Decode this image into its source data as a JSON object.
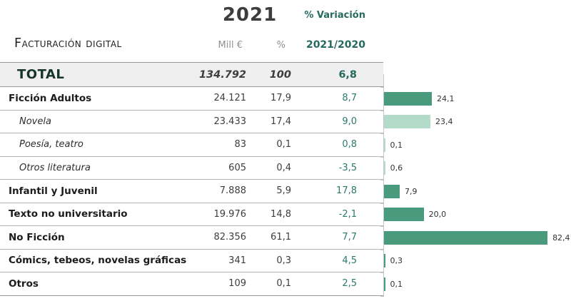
{
  "header": {
    "year": "2021",
    "variation_label": "% Variación",
    "table_title": "Facturación digital",
    "col_mill": "Mill €",
    "col_pct": "%",
    "col_var": "2021/2020"
  },
  "table": {
    "total": {
      "label": "TOTAL",
      "mill": "134.792",
      "pct": "100",
      "var": "6,8"
    },
    "rows": [
      {
        "label": "Ficción Adultos",
        "mill": "24.121",
        "pct": "17,9",
        "var": "8,7",
        "style": "main",
        "bar": 24.1,
        "bar_label": "24,1",
        "bar_color": "dark"
      },
      {
        "label": "Novela",
        "mill": "23.433",
        "pct": "17,4",
        "var": "9,0",
        "style": "sub",
        "bar": 23.4,
        "bar_label": "23,4",
        "bar_color": "light"
      },
      {
        "label": "Poesía, teatro",
        "mill": "83",
        "pct": "0,1",
        "var": "0,8",
        "style": "sub",
        "bar": 0.1,
        "bar_label": "0,1",
        "bar_color": "light"
      },
      {
        "label": "Otros literatura",
        "mill": "605",
        "pct": "0,4",
        "var": "-3,5",
        "style": "sub",
        "bar": 0.6,
        "bar_label": "0,6",
        "bar_color": "light"
      },
      {
        "label": "Infantil y Juvenil",
        "mill": "7.888",
        "pct": "5,9",
        "var": "17,8",
        "style": "main",
        "bar": 7.9,
        "bar_label": "7,9",
        "bar_color": "dark"
      },
      {
        "label": "Texto no universitario",
        "mill": "19.976",
        "pct": "14,8",
        "var": "-2,1",
        "style": "main",
        "bar": 20.0,
        "bar_label": "20,0",
        "bar_color": "dark"
      },
      {
        "label": "No Ficción",
        "mill": "82.356",
        "pct": "61,1",
        "var": "7,7",
        "style": "main",
        "bar": 82.4,
        "bar_label": "82,4",
        "bar_color": "dark"
      },
      {
        "label": "Cómics, tebeos, novelas gráficas",
        "mill": "341",
        "pct": "0,3",
        "var": "4,5",
        "style": "main",
        "bar": 0.3,
        "bar_label": "0,3",
        "bar_color": "dark"
      },
      {
        "label": "Otros",
        "mill": "109",
        "pct": "0,1",
        "var": "2,5",
        "style": "main",
        "bar": 0.1,
        "bar_label": "0,1",
        "bar_color": "dark"
      }
    ]
  },
  "chart_data": {
    "type": "bar",
    "orientation": "horizontal",
    "title": "Facturación digital 2021",
    "categories": [
      "Ficción Adultos",
      "Novela",
      "Poesía, teatro",
      "Otros literatura",
      "Infantil y Juvenil",
      "Texto no universitario",
      "No Ficción",
      "Cómics, tebeos, novelas gráficas",
      "Otros"
    ],
    "series": [
      {
        "name": "Mill €",
        "values": [
          24121,
          23433,
          83,
          605,
          7888,
          19976,
          82356,
          341,
          109
        ]
      },
      {
        "name": "%",
        "values": [
          17.9,
          17.4,
          0.1,
          0.4,
          5.9,
          14.8,
          61.1,
          0.3,
          0.1
        ]
      },
      {
        "name": "% Variación 2021/2020",
        "values": [
          8.7,
          9.0,
          0.8,
          -3.5,
          17.8,
          -2.1,
          7.7,
          4.5,
          2.5
        ]
      }
    ],
    "bar_values": [
      24.1,
      23.4,
      0.1,
      0.6,
      7.9,
      20.0,
      82.4,
      0.3,
      0.1
    ],
    "bar_labels": [
      "24,1",
      "23,4",
      "0,1",
      "0,6",
      "7,9",
      "20,0",
      "82,4",
      "0,3",
      "0,1"
    ],
    "total": {
      "label": "TOTAL",
      "mill_eur": 134792,
      "pct": 100,
      "variation": 6.8
    },
    "xlim": [
      0,
      90
    ],
    "grid": false,
    "legend": false,
    "data_labels": true
  },
  "colors": {
    "accent_teal_text": "#2b7a6c",
    "header_teal": "#26695e",
    "bar_dark": "#4a9a7e",
    "bar_light": "#b4dbca",
    "total_row_bg": "#efefef",
    "grid_line": "#b5b5b5",
    "strong_line": "#999999"
  }
}
